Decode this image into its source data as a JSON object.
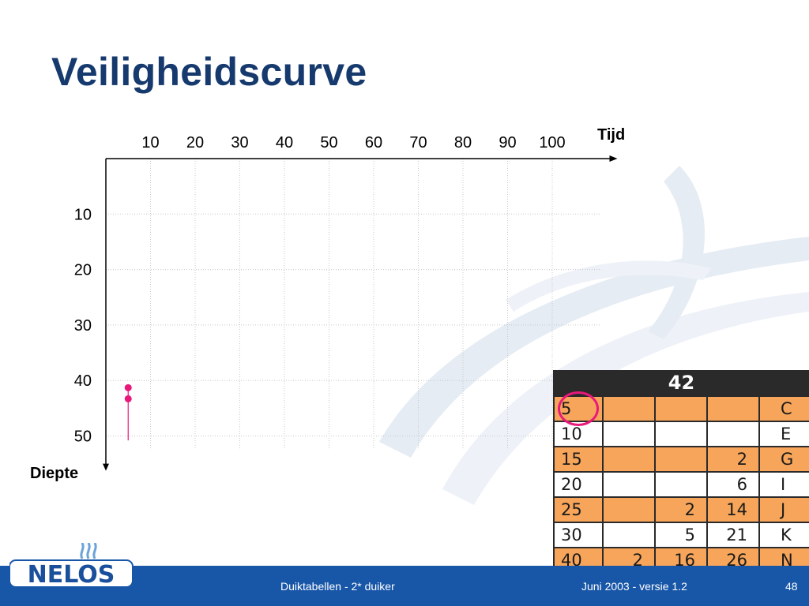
{
  "slide": {
    "title": "Veiligheidscurve"
  },
  "chart_data": {
    "type": "scatter",
    "title": "",
    "x_axis_label": "Tijd",
    "y_axis_label": "Diepte",
    "x_ticks": [
      10,
      20,
      30,
      40,
      50,
      60,
      70,
      80,
      90,
      100
    ],
    "y_ticks": [
      10,
      20,
      30,
      40,
      50
    ],
    "x_range": [
      0,
      110
    ],
    "y_range": [
      0,
      55
    ],
    "y_inverted": true,
    "grid": true,
    "points": [
      {
        "x": 5,
        "y": 41.3
      },
      {
        "x": 5,
        "y": 43.3
      }
    ],
    "drop_line": {
      "x": 5,
      "y_from": 41.3,
      "y_to": 50.8
    },
    "point_color": "#e8197a"
  },
  "dive_table": {
    "header": "42",
    "rows": [
      [
        "5",
        "",
        "",
        "C"
      ],
      [
        "10",
        "",
        "",
        "E"
      ],
      [
        "15",
        "",
        "2",
        "G"
      ],
      [
        "20",
        "",
        "6",
        "I"
      ],
      [
        "25",
        "2",
        "14",
        "J"
      ],
      [
        "30",
        "5",
        "21",
        "K"
      ],
      [
        "40",
        "2",
        "16",
        "26",
        "N"
      ]
    ],
    "highlight_color": "#e8197a",
    "orange": "#f7a55a"
  },
  "footer": {
    "center_text": "Duiktabellen - 2* duiker",
    "right_text": "Juni 2003 - versie 1.2",
    "page_number": "48",
    "bar_color": "#1856a8"
  },
  "logo": {
    "text": "NELOS"
  }
}
